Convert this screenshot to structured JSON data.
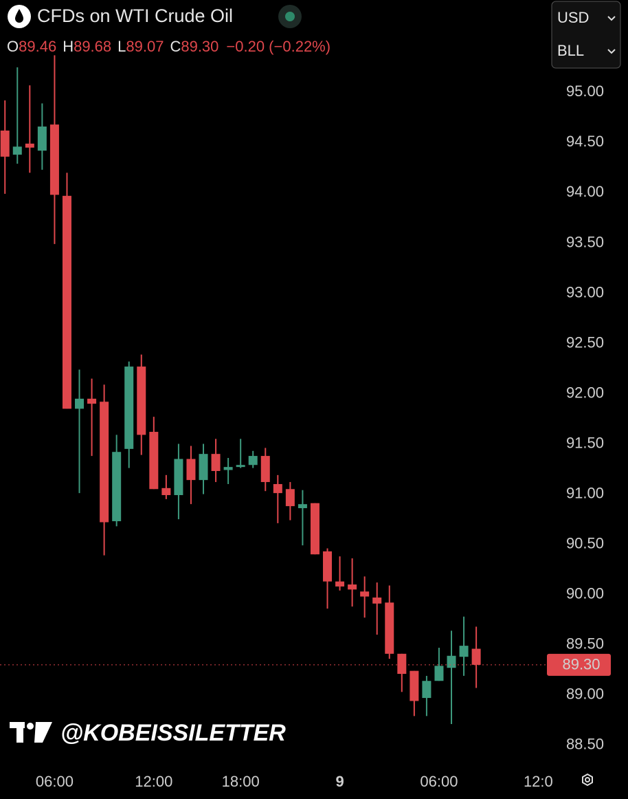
{
  "chart_data": {
    "type": "candlestick",
    "title": "CFDs on WTI Crude Oil",
    "ohlc_legend": [
      {
        "key": "O",
        "value": "89.46"
      },
      {
        "key": "H",
        "value": "89.68"
      },
      {
        "key": "L",
        "value": "89.07"
      },
      {
        "key": "C",
        "value": "89.30"
      }
    ],
    "change": "−0.20 (−0.22%)",
    "currency": "USD",
    "unit": "BLL",
    "watermark": "@KOBEISSILETTER",
    "up_color": "#3d9a7e",
    "down_color": "#e0474c",
    "open": [
      94.62,
      94.38,
      94.49,
      94.42,
      94.68,
      93.97,
      91.85,
      91.95,
      91.92,
      90.73,
      91.45,
      92.27,
      91.62,
      91.06,
      90.99,
      91.35,
      91.14,
      91.4,
      91.24,
      91.27,
      91.29,
      91.38,
      91.1,
      91.05,
      90.86,
      90.91,
      90.43,
      90.13,
      90.1,
      90.03,
      89.97,
      89.92,
      89.41,
      89.24,
      88.97,
      89.14,
      89.27,
      89.38,
      89.46
    ],
    "high": [
      94.92,
      95.25,
      95.07,
      94.89,
      95.37,
      94.2,
      92.24,
      92.15,
      92.09,
      91.59,
      92.32,
      92.39,
      91.77,
      91.19,
      91.5,
      91.48,
      91.5,
      91.55,
      91.36,
      91.55,
      91.43,
      91.46,
      91.19,
      91.12,
      91.04,
      90.91,
      90.46,
      90.38,
      90.36,
      90.18,
      90.12,
      90.09,
      89.41,
      89.24,
      89.19,
      89.47,
      89.64,
      89.78,
      89.68
    ],
    "low": [
      93.99,
      94.29,
      94.2,
      94.23,
      93.49,
      91.85,
      91.01,
      91.38,
      90.39,
      90.68,
      91.26,
      91.39,
      91.05,
      90.95,
      90.75,
      90.9,
      91.0,
      91.12,
      91.1,
      91.26,
      91.26,
      91.03,
      90.71,
      90.74,
      90.49,
      90.4,
      89.86,
      90.04,
      89.88,
      89.77,
      89.6,
      89.36,
      89.03,
      88.79,
      88.79,
      89.14,
      88.71,
      89.19,
      89.07
    ],
    "close": [
      94.36,
      94.46,
      94.45,
      94.66,
      93.98,
      91.85,
      91.95,
      91.9,
      90.72,
      91.42,
      92.27,
      91.59,
      91.05,
      90.99,
      91.35,
      91.14,
      91.4,
      91.23,
      91.27,
      91.29,
      91.38,
      91.12,
      91.01,
      90.88,
      90.9,
      90.4,
      90.13,
      90.08,
      90.05,
      89.98,
      89.91,
      89.41,
      89.21,
      88.94,
      89.14,
      89.29,
      89.39,
      89.49,
      89.3
    ],
    "last_price": {
      "value": 89.3,
      "label": "89.30"
    },
    "xlim": [
      -0.4,
      43.7
    ],
    "xticks": [
      {
        "value": 4,
        "label": "06:00"
      },
      {
        "value": 12,
        "label": "12:00"
      },
      {
        "value": 19,
        "label": "18:00"
      },
      {
        "value": 27,
        "label": "9"
      },
      {
        "value": 35,
        "label": "06:00"
      },
      {
        "value": 43,
        "label": "12:0"
      }
    ],
    "ylim": [
      88.32,
      95.92
    ],
    "yticks": [
      {
        "value": 88.5,
        "label": "88.50"
      },
      {
        "value": 89,
        "label": "89.00"
      },
      {
        "value": 89.5,
        "label": "89.50"
      },
      {
        "value": 90,
        "label": "90.00"
      },
      {
        "value": 90.5,
        "label": "90.50"
      },
      {
        "value": 91,
        "label": "91.00"
      },
      {
        "value": 91.5,
        "label": "91.50"
      },
      {
        "value": 92,
        "label": "92.00"
      },
      {
        "value": 92.5,
        "label": "92.50"
      },
      {
        "value": 93,
        "label": "93.00"
      },
      {
        "value": 93.5,
        "label": "93.50"
      },
      {
        "value": 94,
        "label": "94.00"
      },
      {
        "value": 94.5,
        "label": "94.50"
      },
      {
        "value": 95,
        "label": "95.00"
      }
    ]
  }
}
